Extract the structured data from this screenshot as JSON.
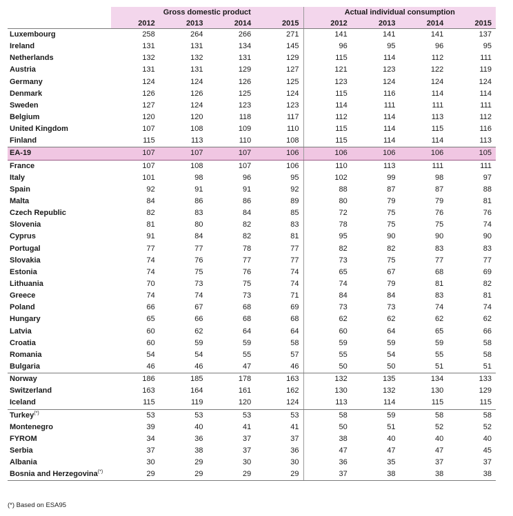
{
  "headers": {
    "group_gdp": "Gross domestic product",
    "group_aic": "Actual individual consumption",
    "years": [
      "2012",
      "2013",
      "2014",
      "2015"
    ]
  },
  "rows": [
    {
      "country": "Luxembourg",
      "gdp": [
        "258",
        "264",
        "266",
        "271"
      ],
      "aic": [
        "141",
        "141",
        "141",
        "137"
      ]
    },
    {
      "country": "Ireland",
      "gdp": [
        "131",
        "131",
        "134",
        "145"
      ],
      "aic": [
        "96",
        "95",
        "96",
        "95"
      ]
    },
    {
      "country": "Netherlands",
      "gdp": [
        "132",
        "132",
        "131",
        "129"
      ],
      "aic": [
        "115",
        "114",
        "112",
        "111"
      ]
    },
    {
      "country": "Austria",
      "gdp": [
        "131",
        "131",
        "129",
        "127"
      ],
      "aic": [
        "121",
        "123",
        "122",
        "119"
      ]
    },
    {
      "country": "Germany",
      "gdp": [
        "124",
        "124",
        "126",
        "125"
      ],
      "aic": [
        "123",
        "124",
        "124",
        "124"
      ]
    },
    {
      "country": "Denmark",
      "gdp": [
        "126",
        "126",
        "125",
        "124"
      ],
      "aic": [
        "115",
        "116",
        "114",
        "114"
      ]
    },
    {
      "country": "Sweden",
      "gdp": [
        "127",
        "124",
        "123",
        "123"
      ],
      "aic": [
        "114",
        "111",
        "111",
        "111"
      ]
    },
    {
      "country": "Belgium",
      "gdp": [
        "120",
        "120",
        "118",
        "117"
      ],
      "aic": [
        "112",
        "114",
        "113",
        "112"
      ]
    },
    {
      "country": "United Kingdom",
      "gdp": [
        "107",
        "108",
        "109",
        "110"
      ],
      "aic": [
        "115",
        "114",
        "115",
        "116"
      ]
    },
    {
      "country": "Finland",
      "gdp": [
        "115",
        "113",
        "110",
        "108"
      ],
      "aic": [
        "115",
        "114",
        "114",
        "113"
      ]
    },
    {
      "country": "EA-19",
      "gdp": [
        "107",
        "107",
        "107",
        "106"
      ],
      "aic": [
        "106",
        "106",
        "106",
        "105"
      ]
    },
    {
      "country": "France",
      "gdp": [
        "107",
        "108",
        "107",
        "106"
      ],
      "aic": [
        "110",
        "113",
        "111",
        "111"
      ]
    },
    {
      "country": "Italy",
      "gdp": [
        "101",
        "98",
        "96",
        "95"
      ],
      "aic": [
        "102",
        "99",
        "98",
        "97"
      ]
    },
    {
      "country": "Spain",
      "gdp": [
        "92",
        "91",
        "91",
        "92"
      ],
      "aic": [
        "88",
        "87",
        "87",
        "88"
      ]
    },
    {
      "country": "Malta",
      "gdp": [
        "84",
        "86",
        "86",
        "89"
      ],
      "aic": [
        "80",
        "79",
        "79",
        "81"
      ]
    },
    {
      "country": "Czech Republic",
      "gdp": [
        "82",
        "83",
        "84",
        "85"
      ],
      "aic": [
        "72",
        "75",
        "76",
        "76"
      ]
    },
    {
      "country": "Slovenia",
      "gdp": [
        "81",
        "80",
        "82",
        "83"
      ],
      "aic": [
        "78",
        "75",
        "75",
        "74"
      ]
    },
    {
      "country": "Cyprus",
      "gdp": [
        "91",
        "84",
        "82",
        "81"
      ],
      "aic": [
        "95",
        "90",
        "90",
        "90"
      ]
    },
    {
      "country": "Portugal",
      "gdp": [
        "77",
        "77",
        "78",
        "77"
      ],
      "aic": [
        "82",
        "82",
        "83",
        "83"
      ]
    },
    {
      "country": "Slovakia",
      "gdp": [
        "74",
        "76",
        "77",
        "77"
      ],
      "aic": [
        "73",
        "75",
        "77",
        "77"
      ]
    },
    {
      "country": "Estonia",
      "gdp": [
        "74",
        "75",
        "76",
        "74"
      ],
      "aic": [
        "65",
        "67",
        "68",
        "69"
      ]
    },
    {
      "country": "Lithuania",
      "gdp": [
        "70",
        "73",
        "75",
        "74"
      ],
      "aic": [
        "74",
        "79",
        "81",
        "82"
      ]
    },
    {
      "country": "Greece",
      "gdp": [
        "74",
        "74",
        "73",
        "71"
      ],
      "aic": [
        "84",
        "84",
        "83",
        "81"
      ]
    },
    {
      "country": "Poland",
      "gdp": [
        "66",
        "67",
        "68",
        "69"
      ],
      "aic": [
        "73",
        "73",
        "74",
        "74"
      ]
    },
    {
      "country": "Hungary",
      "gdp": [
        "65",
        "66",
        "68",
        "68"
      ],
      "aic": [
        "62",
        "62",
        "62",
        "62"
      ]
    },
    {
      "country": "Latvia",
      "gdp": [
        "60",
        "62",
        "64",
        "64"
      ],
      "aic": [
        "60",
        "64",
        "65",
        "66"
      ]
    },
    {
      "country": "Croatia",
      "gdp": [
        "60",
        "59",
        "59",
        "58"
      ],
      "aic": [
        "59",
        "59",
        "59",
        "58"
      ]
    },
    {
      "country": "Romania",
      "gdp": [
        "54",
        "54",
        "55",
        "57"
      ],
      "aic": [
        "55",
        "54",
        "55",
        "58"
      ]
    },
    {
      "country": "Bulgaria",
      "gdp": [
        "46",
        "46",
        "47",
        "46"
      ],
      "aic": [
        "50",
        "50",
        "51",
        "51"
      ]
    },
    {
      "country": "Norway",
      "gdp": [
        "186",
        "185",
        "178",
        "163"
      ],
      "aic": [
        "132",
        "135",
        "134",
        "133"
      ]
    },
    {
      "country": "Switzerland",
      "gdp": [
        "163",
        "164",
        "161",
        "162"
      ],
      "aic": [
        "130",
        "132",
        "130",
        "129"
      ]
    },
    {
      "country": "Iceland",
      "gdp": [
        "115",
        "119",
        "120",
        "124"
      ],
      "aic": [
        "113",
        "114",
        "115",
        "115"
      ]
    },
    {
      "country": "Turkey",
      "sup": "(*)",
      "gdp": [
        "53",
        "53",
        "53",
        "53"
      ],
      "aic": [
        "58",
        "59",
        "58",
        "58"
      ]
    },
    {
      "country": "Montenegro",
      "gdp": [
        "39",
        "40",
        "41",
        "41"
      ],
      "aic": [
        "50",
        "51",
        "52",
        "52"
      ]
    },
    {
      "country": "FYROM",
      "gdp": [
        "34",
        "36",
        "37",
        "37"
      ],
      "aic": [
        "38",
        "40",
        "40",
        "40"
      ]
    },
    {
      "country": "Serbia",
      "gdp": [
        "37",
        "38",
        "37",
        "36"
      ],
      "aic": [
        "47",
        "47",
        "47",
        "45"
      ]
    },
    {
      "country": "Albania",
      "gdp": [
        "30",
        "29",
        "30",
        "30"
      ],
      "aic": [
        "36",
        "35",
        "37",
        "37"
      ]
    },
    {
      "country": "Bosnia and Herzegovina",
      "sup": "(*)",
      "gdp": [
        "29",
        "29",
        "29",
        "29"
      ],
      "aic": [
        "37",
        "38",
        "38",
        "38"
      ]
    }
  ],
  "footnote": "(*)  Based on ESA95"
}
